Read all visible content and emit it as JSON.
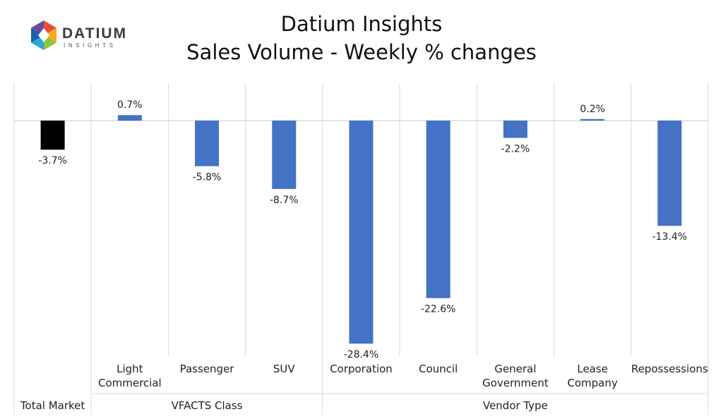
{
  "logo": {
    "icon": "datium-hexagon-icon",
    "name": "DATIUM",
    "tagline": "INSIGHTS",
    "colors": [
      "#e94e3c",
      "#f7a81b",
      "#8cc63f",
      "#2aa8d8",
      "#1f5ea8",
      "#6a4c9c"
    ]
  },
  "title": {
    "line1": "Datium Insights",
    "line2": "Sales Volume - Weekly % changes"
  },
  "chart_data": {
    "type": "bar",
    "categories": [
      "Total Market",
      "Light Commercial",
      "Passenger",
      "SUV",
      "Corporation",
      "Council",
      "General Government",
      "Lease Company",
      "Repossessions"
    ],
    "category_lines": [
      [
        "Total Market"
      ],
      [
        "Light",
        "Commercial"
      ],
      [
        "Passenger"
      ],
      [
        "SUV"
      ],
      [
        "Corporation"
      ],
      [
        "Council"
      ],
      [
        "General",
        "Government"
      ],
      [
        "Lease",
        "Company"
      ],
      [
        "Repossessions"
      ]
    ],
    "values": [
      -3.7,
      0.7,
      -5.8,
      -8.7,
      -28.4,
      -22.6,
      -2.2,
      0.2,
      -13.4
    ],
    "data_labels": [
      "-3.7%",
      "0.7%",
      "-5.8%",
      "-8.7%",
      "-28.4%",
      "-22.6%",
      "-2.2%",
      "0.2%",
      "-13.4%"
    ],
    "groups": [
      {
        "label": "",
        "members": [
          "Total Market"
        ]
      },
      {
        "label": "VFACTS Class",
        "members": [
          "Light Commercial",
          "Passenger",
          "SUV"
        ]
      },
      {
        "label": "Vendor Type",
        "members": [
          "Corporation",
          "Council",
          "General Government",
          "Lease Company",
          "Repossessions"
        ]
      }
    ],
    "ylim": [
      -30,
      5
    ],
    "grid": true,
    "legend": "none",
    "colors": {
      "total": "#000000",
      "default": "#4472c4"
    }
  }
}
